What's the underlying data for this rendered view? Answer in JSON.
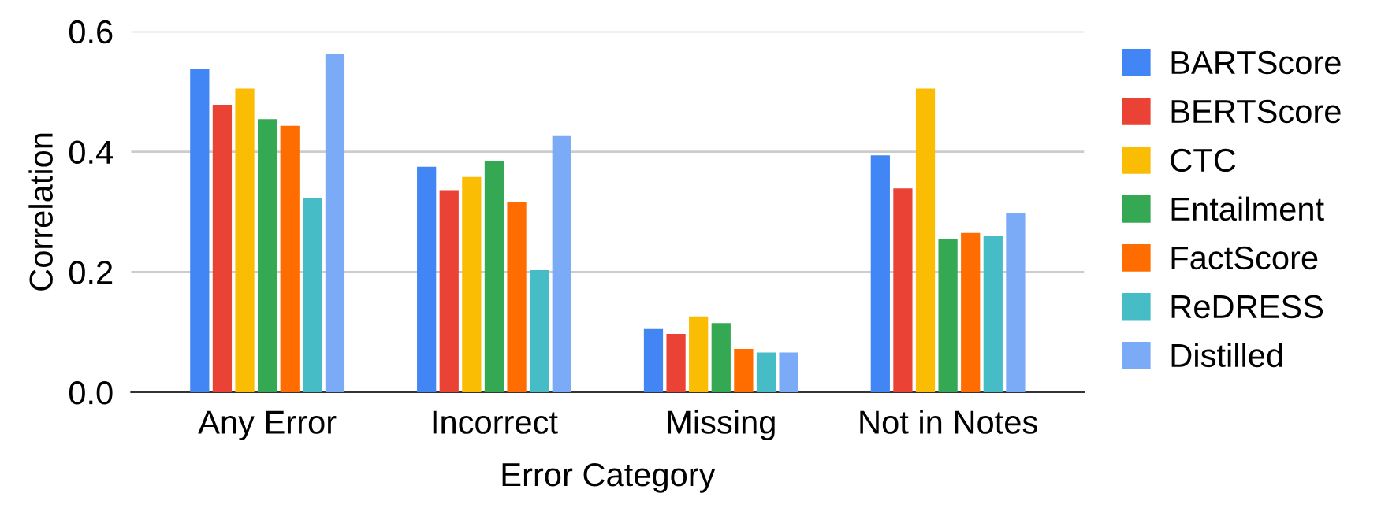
{
  "chart_data": {
    "type": "bar",
    "xlabel": "Error Category",
    "ylabel": "Correlation",
    "categories": [
      "Any Error",
      "Incorrect",
      "Missing",
      "Not in Notes"
    ],
    "ylim": [
      0,
      0.6
    ],
    "yticks": [
      {
        "value": 0,
        "label": "0.0"
      },
      0.2,
      0.4,
      0.6
    ],
    "grid": "y",
    "legend": "right",
    "series": [
      {
        "name": "BARTScore",
        "color": "#4285f4",
        "values": [
          0.538,
          0.375,
          0.105,
          0.394
        ]
      },
      {
        "name": "BERTScore",
        "color": "#ea4335",
        "values": [
          0.478,
          0.336,
          0.097,
          0.339
        ]
      },
      {
        "name": "CTC",
        "color": "#fbbc04",
        "values": [
          0.505,
          0.358,
          0.126,
          0.505
        ]
      },
      {
        "name": "Entailment",
        "color": "#34a853",
        "values": [
          0.454,
          0.385,
          0.115,
          0.255
        ]
      },
      {
        "name": "FactScore",
        "color": "#ff6d01",
        "values": [
          0.443,
          0.317,
          0.072,
          0.265
        ]
      },
      {
        "name": "ReDRESS",
        "color": "#46bdc6",
        "values": [
          0.323,
          0.203,
          0.066,
          0.26
        ]
      },
      {
        "name": "Distilled",
        "color": "#7baaf7",
        "values": [
          0.563,
          0.426,
          0.066,
          0.298
        ]
      }
    ]
  }
}
